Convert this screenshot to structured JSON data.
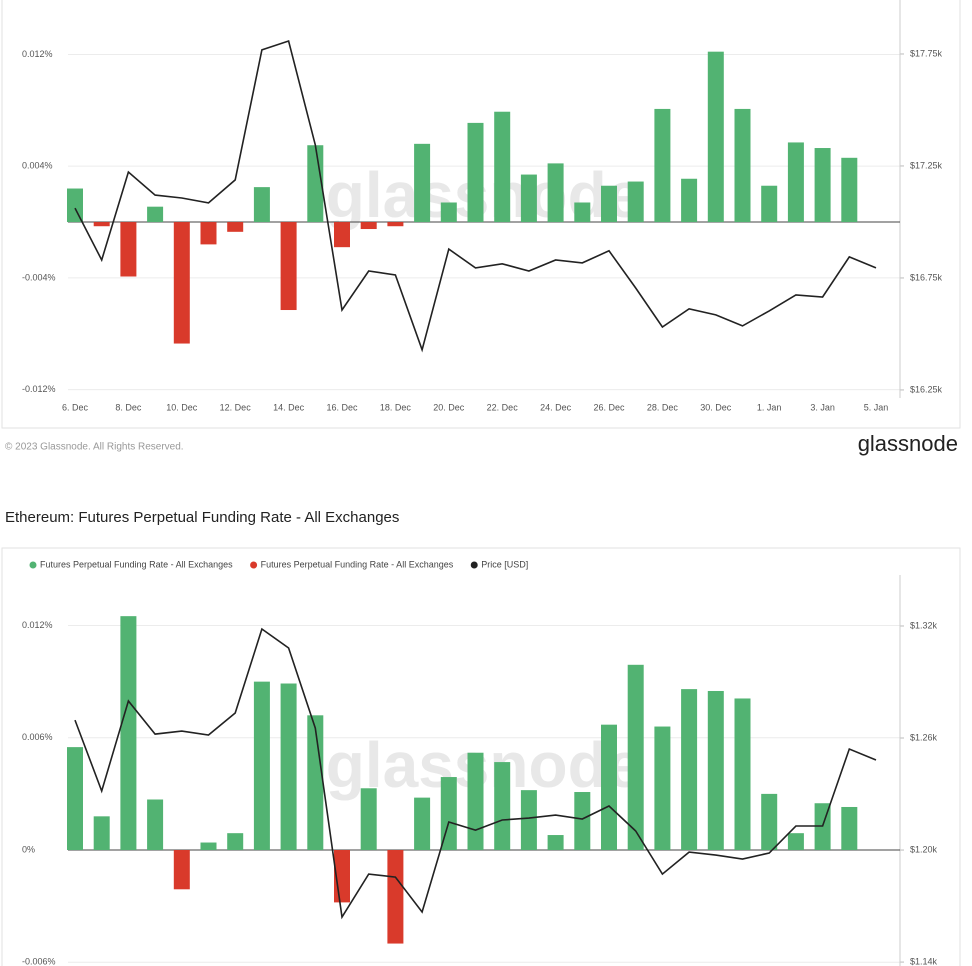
{
  "chart_data": [
    {
      "type": "bar",
      "watermark": "glassnode",
      "categories": [
        "6. Dec",
        null,
        "8. Dec",
        null,
        "10. Dec",
        null,
        "12. Dec",
        null,
        "14. Dec",
        null,
        "16. Dec",
        null,
        "18. Dec",
        null,
        "20. Dec",
        null,
        "22. Dec",
        null,
        "24. Dec",
        null,
        "26. Dec",
        null,
        "28. Dec",
        null,
        "30. Dec",
        null,
        "1. Jan",
        null,
        "3. Jan",
        null,
        "5. Jan"
      ],
      "series": [
        {
          "color": "#52b372",
          "values": [
            0.0024,
            null,
            null,
            0.0011,
            null,
            null,
            null,
            0.0025,
            null,
            0.0055,
            null,
            null,
            null,
            0.0056,
            0.0014,
            0.0071,
            0.0079,
            0.0034,
            0.0042,
            0.0014,
            0.0026,
            0.0029,
            0.0081,
            0.0031,
            0.0122,
            0.0081,
            0.0026,
            0.0057,
            0.0053,
            0.0046,
            null
          ]
        },
        {
          "color": "#d93a2b",
          "values": [
            null,
            -0.0003,
            -0.0039,
            null,
            -0.0087,
            -0.0016,
            -0.0007,
            null,
            -0.0063,
            null,
            -0.0018,
            -0.0005,
            -0.0003,
            null,
            null,
            null,
            null,
            null,
            null,
            null,
            null,
            null,
            null,
            null,
            null,
            null,
            null,
            null,
            null,
            null,
            null
          ]
        },
        {
          "color": "#222222",
          "type": "line",
          "axis": "y2",
          "values": [
            17062,
            16830,
            17223,
            17120,
            17107,
            17085,
            17188,
            17768,
            17808,
            17344,
            16607,
            16781,
            16763,
            16429,
            16879,
            16795,
            16813,
            16781,
            16830,
            16817,
            16871,
            16705,
            16531,
            16612,
            16585,
            16536,
            16603,
            16674,
            16665,
            16844,
            16795
          ]
        }
      ],
      "ylim": [
        -0.0126,
        0.0159
      ],
      "yticks": [
        {
          "value": 0.012,
          "label": "0.012%"
        },
        {
          "value": 0.004,
          "label": "0.004%"
        },
        {
          "value": -0.004,
          "label": "-0.004%"
        },
        {
          "value": -0.012,
          "label": "-0.012%"
        }
      ],
      "y2lim": [
        16214,
        17991
      ],
      "y2ticks": [
        {
          "value": 17750,
          "label": "$17.75k"
        },
        {
          "value": 17250,
          "label": "$17.25k"
        },
        {
          "value": 16750,
          "label": "$16.75k"
        },
        {
          "value": 16250,
          "label": "$16.25k"
        }
      ],
      "grid": true,
      "copyright": "© 2023 Glassnode. All Rights Reserved.",
      "logo": "glassnode"
    },
    {
      "type": "bar",
      "title": "Ethereum: Futures Perpetual Funding Rate - All Exchanges",
      "watermark": "glassnode",
      "categories": [
        null,
        null,
        null,
        null,
        null,
        null,
        null,
        null,
        null,
        null,
        null,
        null,
        null,
        null,
        null,
        null,
        null,
        null,
        null,
        null,
        null,
        null,
        null,
        null,
        null,
        null,
        null,
        null,
        null,
        null,
        null
      ],
      "series": [
        {
          "name": "Futures Perpetual Funding Rate - All Exchanges",
          "color": "#52b372",
          "values": [
            0.0055,
            0.0018,
            0.0125,
            0.0027,
            null,
            0.0004,
            0.0009,
            0.009,
            0.0089,
            0.0072,
            null,
            0.0033,
            null,
            0.0028,
            0.0039,
            0.0052,
            0.0047,
            0.0032,
            0.0008,
            0.0031,
            0.0067,
            0.0099,
            0.0066,
            0.0086,
            0.0085,
            0.0081,
            0.003,
            0.0009,
            0.0025,
            0.0023,
            null
          ]
        },
        {
          "name": "Futures Perpetual Funding Rate - All Exchanges",
          "color": "#d93a2b",
          "values": [
            null,
            null,
            null,
            null,
            -0.0021,
            null,
            null,
            null,
            null,
            null,
            -0.0028,
            null,
            -0.005,
            null,
            null,
            null,
            null,
            null,
            null,
            null,
            null,
            null,
            null,
            null,
            null,
            null,
            null,
            null,
            null,
            null,
            null
          ]
        },
        {
          "name": "Price [USD]",
          "color": "#222222",
          "type": "line",
          "axis": "y2",
          "values": [
            1269.6,
            1231.6,
            1279.8,
            1262.1,
            1263.7,
            1261.6,
            1273.4,
            1318.4,
            1308.2,
            1265.3,
            1164.1,
            1187.1,
            1185.5,
            1166.8,
            1215,
            1210.7,
            1216.1,
            1217.1,
            1218.7,
            1216.6,
            1223.6,
            1210.2,
            1187.1,
            1198.9,
            1197.3,
            1195.2,
            1198.4,
            1212.9,
            1212.9,
            1254.1,
            1248.2
          ]
        }
      ],
      "ylim": [
        -0.0062,
        0.0147
      ],
      "yticks": [
        {
          "value": 0.012,
          "label": "0.012%"
        },
        {
          "value": 0.006,
          "label": "0.006%"
        },
        {
          "value": 0,
          "label": "0%"
        },
        {
          "value": -0.006,
          "label": "-0.006%"
        }
      ],
      "y2lim": [
        1137.9,
        1347.3
      ],
      "y2ticks": [
        {
          "value": 1320,
          "label": "$1.32k"
        },
        {
          "value": 1260,
          "label": "$1.26k"
        },
        {
          "value": 1200,
          "label": "$1.20k"
        },
        {
          "value": 1140,
          "label": "$1.14k"
        }
      ],
      "grid": true
    }
  ]
}
